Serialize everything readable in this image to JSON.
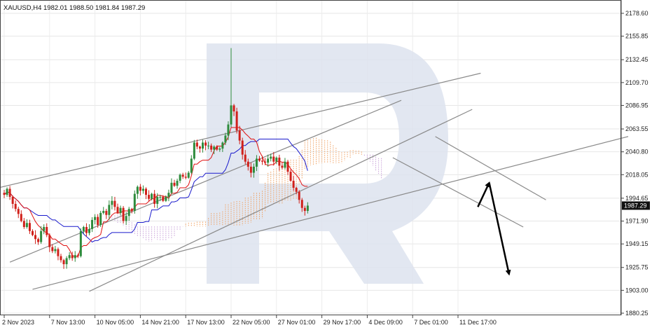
{
  "chart_data": {
    "type": "candlestick",
    "title": "XAUUSD,H4  1982.01 1988.50 1981.84 1987.29",
    "symbol": "XAUUSD",
    "timeframe": "H4",
    "ohlc_header": {
      "open": 1982.01,
      "high": 1988.5,
      "low": 1981.84,
      "close": 1987.29
    },
    "current_price_label": "1987.29",
    "current_price": 1987.29,
    "ylim": [
      1880.25,
      2190
    ],
    "y_ticks": [
      {
        "label": "2178.60",
        "value": 2178.6
      },
      {
        "label": "2155.85",
        "value": 2155.85
      },
      {
        "label": "2132.45",
        "value": 2132.45
      },
      {
        "label": "2109.70",
        "value": 2109.7
      },
      {
        "label": "2086.95",
        "value": 2086.95
      },
      {
        "label": "2063.55",
        "value": 2063.55
      },
      {
        "label": "2040.80",
        "value": 2040.8
      },
      {
        "label": "2018.05",
        "value": 2018.05
      },
      {
        "label": "1994.65",
        "value": 1994.65
      },
      {
        "label": "1971.90",
        "value": 1971.9
      },
      {
        "label": "1949.15",
        "value": 1949.15
      },
      {
        "label": "1925.75",
        "value": 1925.75
      },
      {
        "label": "1903.00",
        "value": 1903.0
      },
      {
        "label": "1880.25",
        "value": 1880.25
      }
    ],
    "x_ticks": [
      {
        "label": "2 Nov 2023",
        "bar": 0
      },
      {
        "label": "7 Nov 13:00",
        "bar": 16
      },
      {
        "label": "10 Nov 05:00",
        "bar": 32
      },
      {
        "label": "14 Nov 21:00",
        "bar": 48
      },
      {
        "label": "17 Nov 13:00",
        "bar": 64
      },
      {
        "label": "22 Nov 05:00",
        "bar": 80
      },
      {
        "label": "27 Nov 01:00",
        "bar": 96
      },
      {
        "label": "29 Nov 17:00",
        "bar": 112
      },
      {
        "label": "4 Dec 09:00",
        "bar": 128
      },
      {
        "label": "7 Dec 01:00",
        "bar": 144
      },
      {
        "label": "11 Dec 17:00",
        "bar": 160
      }
    ],
    "grid": true,
    "colors": {
      "bull": "#2e8b3c",
      "bear": "#d0201a",
      "tenkan": "#e01010",
      "kijun": "#1a1acc",
      "cloud": "#f0a060",
      "cloud_alt": "#c8a0d8",
      "trendline": "#8a8a8a",
      "arrow": "#000000",
      "price_tag": "#111111",
      "watermark": "#dde3ee"
    },
    "closes": [
      1998,
      2004,
      1996,
      1989,
      1984,
      1979,
      1972,
      1966,
      1970,
      1962,
      1958,
      1954,
      1951,
      1962,
      1966,
      1958,
      1946,
      1942,
      1944,
      1937,
      1933,
      1929,
      1935,
      1938,
      1935,
      1938,
      1937,
      1962,
      1966,
      1960,
      1964,
      1973,
      1976,
      1968,
      1980,
      1982,
      1978,
      1988,
      1992,
      1986,
      1980,
      1985,
      1972,
      1977,
      1984,
      1982,
      1999,
      2006,
      2002,
      2004,
      1998,
      1994,
      1999,
      1989,
      1996,
      1996,
      1992,
      1996,
      2000,
      2010,
      2007,
      2012,
      2018,
      2016,
      2015,
      2020,
      2034,
      2050,
      2046,
      2044,
      2050,
      2047,
      2047,
      2043,
      2046,
      2043,
      2044,
      2050,
      2057,
      2068,
      2087,
      2081,
      2062,
      2052,
      2038,
      2031,
      2026,
      2020,
      2026,
      2034,
      2032,
      2031,
      2030,
      2034,
      2036,
      2031,
      2035,
      2027,
      2025,
      2031,
      2021,
      2012,
      2005,
      2001,
      1993,
      1985,
      1982,
      1987.29
    ],
    "trendlines": [
      {
        "from": {
          "bar": -2,
          "price": 2005
        },
        "to": {
          "bar": 168,
          "price": 2119
        }
      },
      {
        "from": {
          "bar": 2,
          "price": 1931
        },
        "to": {
          "bar": 140,
          "price": 2092
        }
      },
      {
        "from": {
          "bar": 10,
          "price": 1904
        },
        "to": {
          "bar": 220,
          "price": 2056
        }
      },
      {
        "from": {
          "bar": 30,
          "price": 1902
        },
        "to": {
          "bar": 165,
          "price": 2083
        }
      },
      {
        "from": {
          "bar": 137,
          "price": 2035
        },
        "to": {
          "bar": 183,
          "price": 1966
        }
      },
      {
        "from": {
          "bar": 152,
          "price": 2056
        },
        "to": {
          "bar": 191,
          "price": 1993
        }
      }
    ],
    "forecast_arrows": [
      {
        "from": {
          "bar": 167,
          "price": 1986
        },
        "to": {
          "bar": 171,
          "price": 2010
        }
      },
      {
        "from": {
          "bar": 171,
          "price": 2010
        },
        "to": {
          "bar": 178,
          "price": 1919
        }
      }
    ]
  }
}
